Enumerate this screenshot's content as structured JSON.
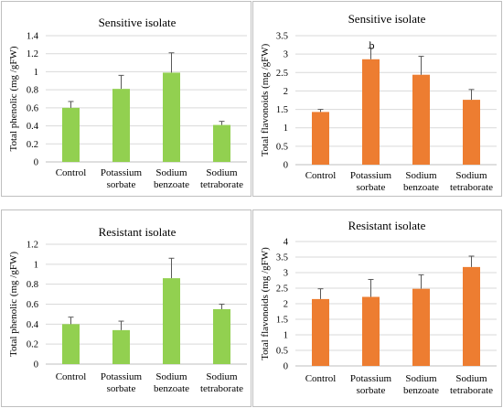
{
  "colors": {
    "green": "#92D050",
    "orange": "#ED7D31",
    "grid": "#d9d9d9",
    "axis": "#bfbfbf"
  },
  "chart_data": [
    {
      "type": "bar",
      "title": "Sensitive isolate",
      "ylabel": "Total phenolic (mg /gFW)",
      "xlabel": "",
      "categories": [
        [
          "Control"
        ],
        [
          "Potassium",
          "sorbate"
        ],
        [
          "Sodium",
          "benzoate"
        ],
        [
          "Sodium",
          "tetraborate"
        ]
      ],
      "series": [
        {
          "values": [
            0.6,
            0.81,
            0.99,
            0.41
          ],
          "errors": [
            0.07,
            0.15,
            0.22,
            0.04
          ],
          "color": "#92D050"
        }
      ],
      "ylim": [
        0,
        1.4
      ],
      "yticks": [
        "0",
        "0.2",
        "0.4",
        "0.6",
        "0.8",
        "1",
        "1.2",
        "1.4"
      ],
      "annotations": [],
      "grid": true
    },
    {
      "type": "bar",
      "title": "Sensitive isolate",
      "ylabel": "Total flavonoids (mg /gFW)",
      "xlabel": "",
      "categories": [
        [
          "Control"
        ],
        [
          "Potassium",
          "sorbate"
        ],
        [
          "Sodium",
          "benzoate"
        ],
        [
          "Sodium",
          "tetraborate"
        ]
      ],
      "series": [
        {
          "values": [
            1.43,
            2.86,
            2.44,
            1.76
          ],
          "errors": [
            0.07,
            0.3,
            0.5,
            0.28
          ],
          "color": "#ED7D31"
        }
      ],
      "ylim": [
        0,
        3.5
      ],
      "yticks": [
        "0",
        "0.5",
        "1",
        "1.5",
        "2",
        "2.5",
        "3",
        "3.5"
      ],
      "annotations": [
        {
          "category": 1,
          "text": "b"
        }
      ],
      "grid": true
    },
    {
      "type": "bar",
      "title": "Resistant isolate",
      "ylabel": "Total phenolic (mg /gFW)",
      "xlabel": "",
      "categories": [
        [
          "Control"
        ],
        [
          "Potassium",
          "sorbate"
        ],
        [
          "Sodium",
          "benzoate"
        ],
        [
          "Sodium",
          "tetraborate"
        ]
      ],
      "series": [
        {
          "values": [
            0.4,
            0.34,
            0.86,
            0.55
          ],
          "errors": [
            0.07,
            0.09,
            0.2,
            0.05
          ],
          "color": "#92D050"
        }
      ],
      "ylim": [
        0,
        1.2
      ],
      "yticks": [
        "0",
        "0.2",
        "0.4",
        "0.6",
        "0.8",
        "1",
        "1.2"
      ],
      "annotations": [],
      "grid": true
    },
    {
      "type": "bar",
      "title": "Resistant isolate",
      "ylabel": "Total flavonoids (mg /gFW)",
      "xlabel": "",
      "categories": [
        [
          "Control"
        ],
        [
          "Potassium",
          "sorbate"
        ],
        [
          "Sodium",
          "benzoate"
        ],
        [
          "Sodium",
          "tetraborate"
        ]
      ],
      "series": [
        {
          "values": [
            2.15,
            2.22,
            2.48,
            3.18
          ],
          "errors": [
            0.33,
            0.56,
            0.45,
            0.35
          ],
          "color": "#ED7D31"
        }
      ],
      "ylim": [
        0,
        4
      ],
      "yticks": [
        "0",
        "0.5",
        "1",
        "1.5",
        "2",
        "2.5",
        "3",
        "3.5",
        "4"
      ],
      "annotations": [],
      "grid": true
    }
  ]
}
